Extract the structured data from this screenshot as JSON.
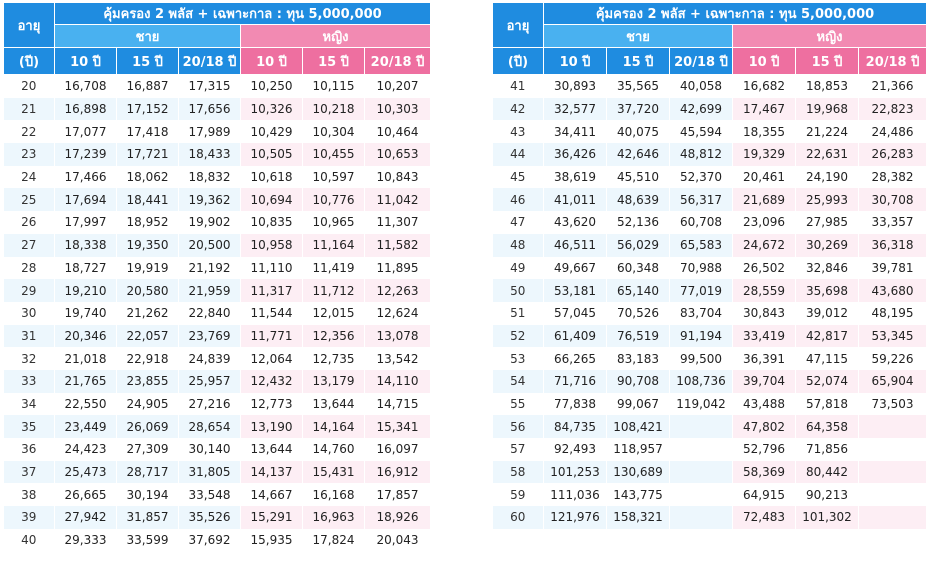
{
  "header": {
    "age_label": "อายุ",
    "age_unit": "(ปี)",
    "title": "คุ้มครอง 2 พลัส + เฉพาะกาล : ทุน 5,000,000",
    "male": "ชาย",
    "female": "หญิง",
    "terms": [
      "10 ปี",
      "15 ปี",
      "20/18 ปี"
    ]
  },
  "left_rows": [
    [
      "20",
      "16,708",
      "16,887",
      "17,315",
      "10,250",
      "10,115",
      "10,207"
    ],
    [
      "21",
      "16,898",
      "17,152",
      "17,656",
      "10,326",
      "10,218",
      "10,303"
    ],
    [
      "22",
      "17,077",
      "17,418",
      "17,989",
      "10,429",
      "10,304",
      "10,464"
    ],
    [
      "23",
      "17,239",
      "17,721",
      "18,433",
      "10,505",
      "10,455",
      "10,653"
    ],
    [
      "24",
      "17,466",
      "18,062",
      "18,832",
      "10,618",
      "10,597",
      "10,843"
    ],
    [
      "25",
      "17,694",
      "18,441",
      "19,362",
      "10,694",
      "10,776",
      "11,042"
    ],
    [
      "26",
      "17,997",
      "18,952",
      "19,902",
      "10,835",
      "10,965",
      "11,307"
    ],
    [
      "27",
      "18,338",
      "19,350",
      "20,500",
      "10,958",
      "11,164",
      "11,582"
    ],
    [
      "28",
      "18,727",
      "19,919",
      "21,192",
      "11,110",
      "11,419",
      "11,895"
    ],
    [
      "29",
      "19,210",
      "20,580",
      "21,959",
      "11,317",
      "11,712",
      "12,263"
    ],
    [
      "30",
      "19,740",
      "21,262",
      "22,840",
      "11,544",
      "12,015",
      "12,624"
    ],
    [
      "31",
      "20,346",
      "22,057",
      "23,769",
      "11,771",
      "12,356",
      "13,078"
    ],
    [
      "32",
      "21,018",
      "22,918",
      "24,839",
      "12,064",
      "12,735",
      "13,542"
    ],
    [
      "33",
      "21,765",
      "23,855",
      "25,957",
      "12,432",
      "13,179",
      "14,110"
    ],
    [
      "34",
      "22,550",
      "24,905",
      "27,216",
      "12,773",
      "13,644",
      "14,715"
    ],
    [
      "35",
      "23,449",
      "26,069",
      "28,654",
      "13,190",
      "14,164",
      "15,341"
    ],
    [
      "36",
      "24,423",
      "27,309",
      "30,140",
      "13,644",
      "14,760",
      "16,097"
    ],
    [
      "37",
      "25,473",
      "28,717",
      "31,805",
      "14,137",
      "15,431",
      "16,912"
    ],
    [
      "38",
      "26,665",
      "30,194",
      "33,548",
      "14,667",
      "16,168",
      "17,857"
    ],
    [
      "39",
      "27,942",
      "31,857",
      "35,526",
      "15,291",
      "16,963",
      "18,926"
    ],
    [
      "40",
      "29,333",
      "33,599",
      "37,692",
      "15,935",
      "17,824",
      "20,043"
    ]
  ],
  "right_rows": [
    [
      "41",
      "30,893",
      "35,565",
      "40,058",
      "16,682",
      "18,853",
      "21,366"
    ],
    [
      "42",
      "32,577",
      "37,720",
      "42,699",
      "17,467",
      "19,968",
      "22,823"
    ],
    [
      "43",
      "34,411",
      "40,075",
      "45,594",
      "18,355",
      "21,224",
      "24,486"
    ],
    [
      "44",
      "36,426",
      "42,646",
      "48,812",
      "19,329",
      "22,631",
      "26,283"
    ],
    [
      "45",
      "38,619",
      "45,510",
      "52,370",
      "20,461",
      "24,190",
      "28,382"
    ],
    [
      "46",
      "41,011",
      "48,639",
      "56,317",
      "21,689",
      "25,993",
      "30,708"
    ],
    [
      "47",
      "43,620",
      "52,136",
      "60,708",
      "23,096",
      "27,985",
      "33,357"
    ],
    [
      "48",
      "46,511",
      "56,029",
      "65,583",
      "24,672",
      "30,269",
      "36,318"
    ],
    [
      "49",
      "49,667",
      "60,348",
      "70,988",
      "26,502",
      "32,846",
      "39,781"
    ],
    [
      "50",
      "53,181",
      "65,140",
      "77,019",
      "28,559",
      "35,698",
      "43,680"
    ],
    [
      "51",
      "57,045",
      "70,526",
      "83,704",
      "30,843",
      "39,012",
      "48,195"
    ],
    [
      "52",
      "61,409",
      "76,519",
      "91,194",
      "33,419",
      "42,817",
      "53,345"
    ],
    [
      "53",
      "66,265",
      "83,183",
      "99,500",
      "36,391",
      "47,115",
      "59,226"
    ],
    [
      "54",
      "71,716",
      "90,708",
      "108,736",
      "39,704",
      "52,074",
      "65,904"
    ],
    [
      "55",
      "77,838",
      "99,067",
      "119,042",
      "43,488",
      "57,818",
      "73,503"
    ],
    [
      "56",
      "84,735",
      "108,421",
      "",
      "47,802",
      "64,358",
      ""
    ],
    [
      "57",
      "92,493",
      "118,957",
      "",
      "52,796",
      "71,856",
      ""
    ],
    [
      "58",
      "101,253",
      "130,689",
      "",
      "58,369",
      "80,442",
      ""
    ],
    [
      "59",
      "111,036",
      "143,775",
      "",
      "64,915",
      "90,213",
      ""
    ],
    [
      "60",
      "121,976",
      "158,321",
      "",
      "72,483",
      "101,302",
      ""
    ]
  ]
}
